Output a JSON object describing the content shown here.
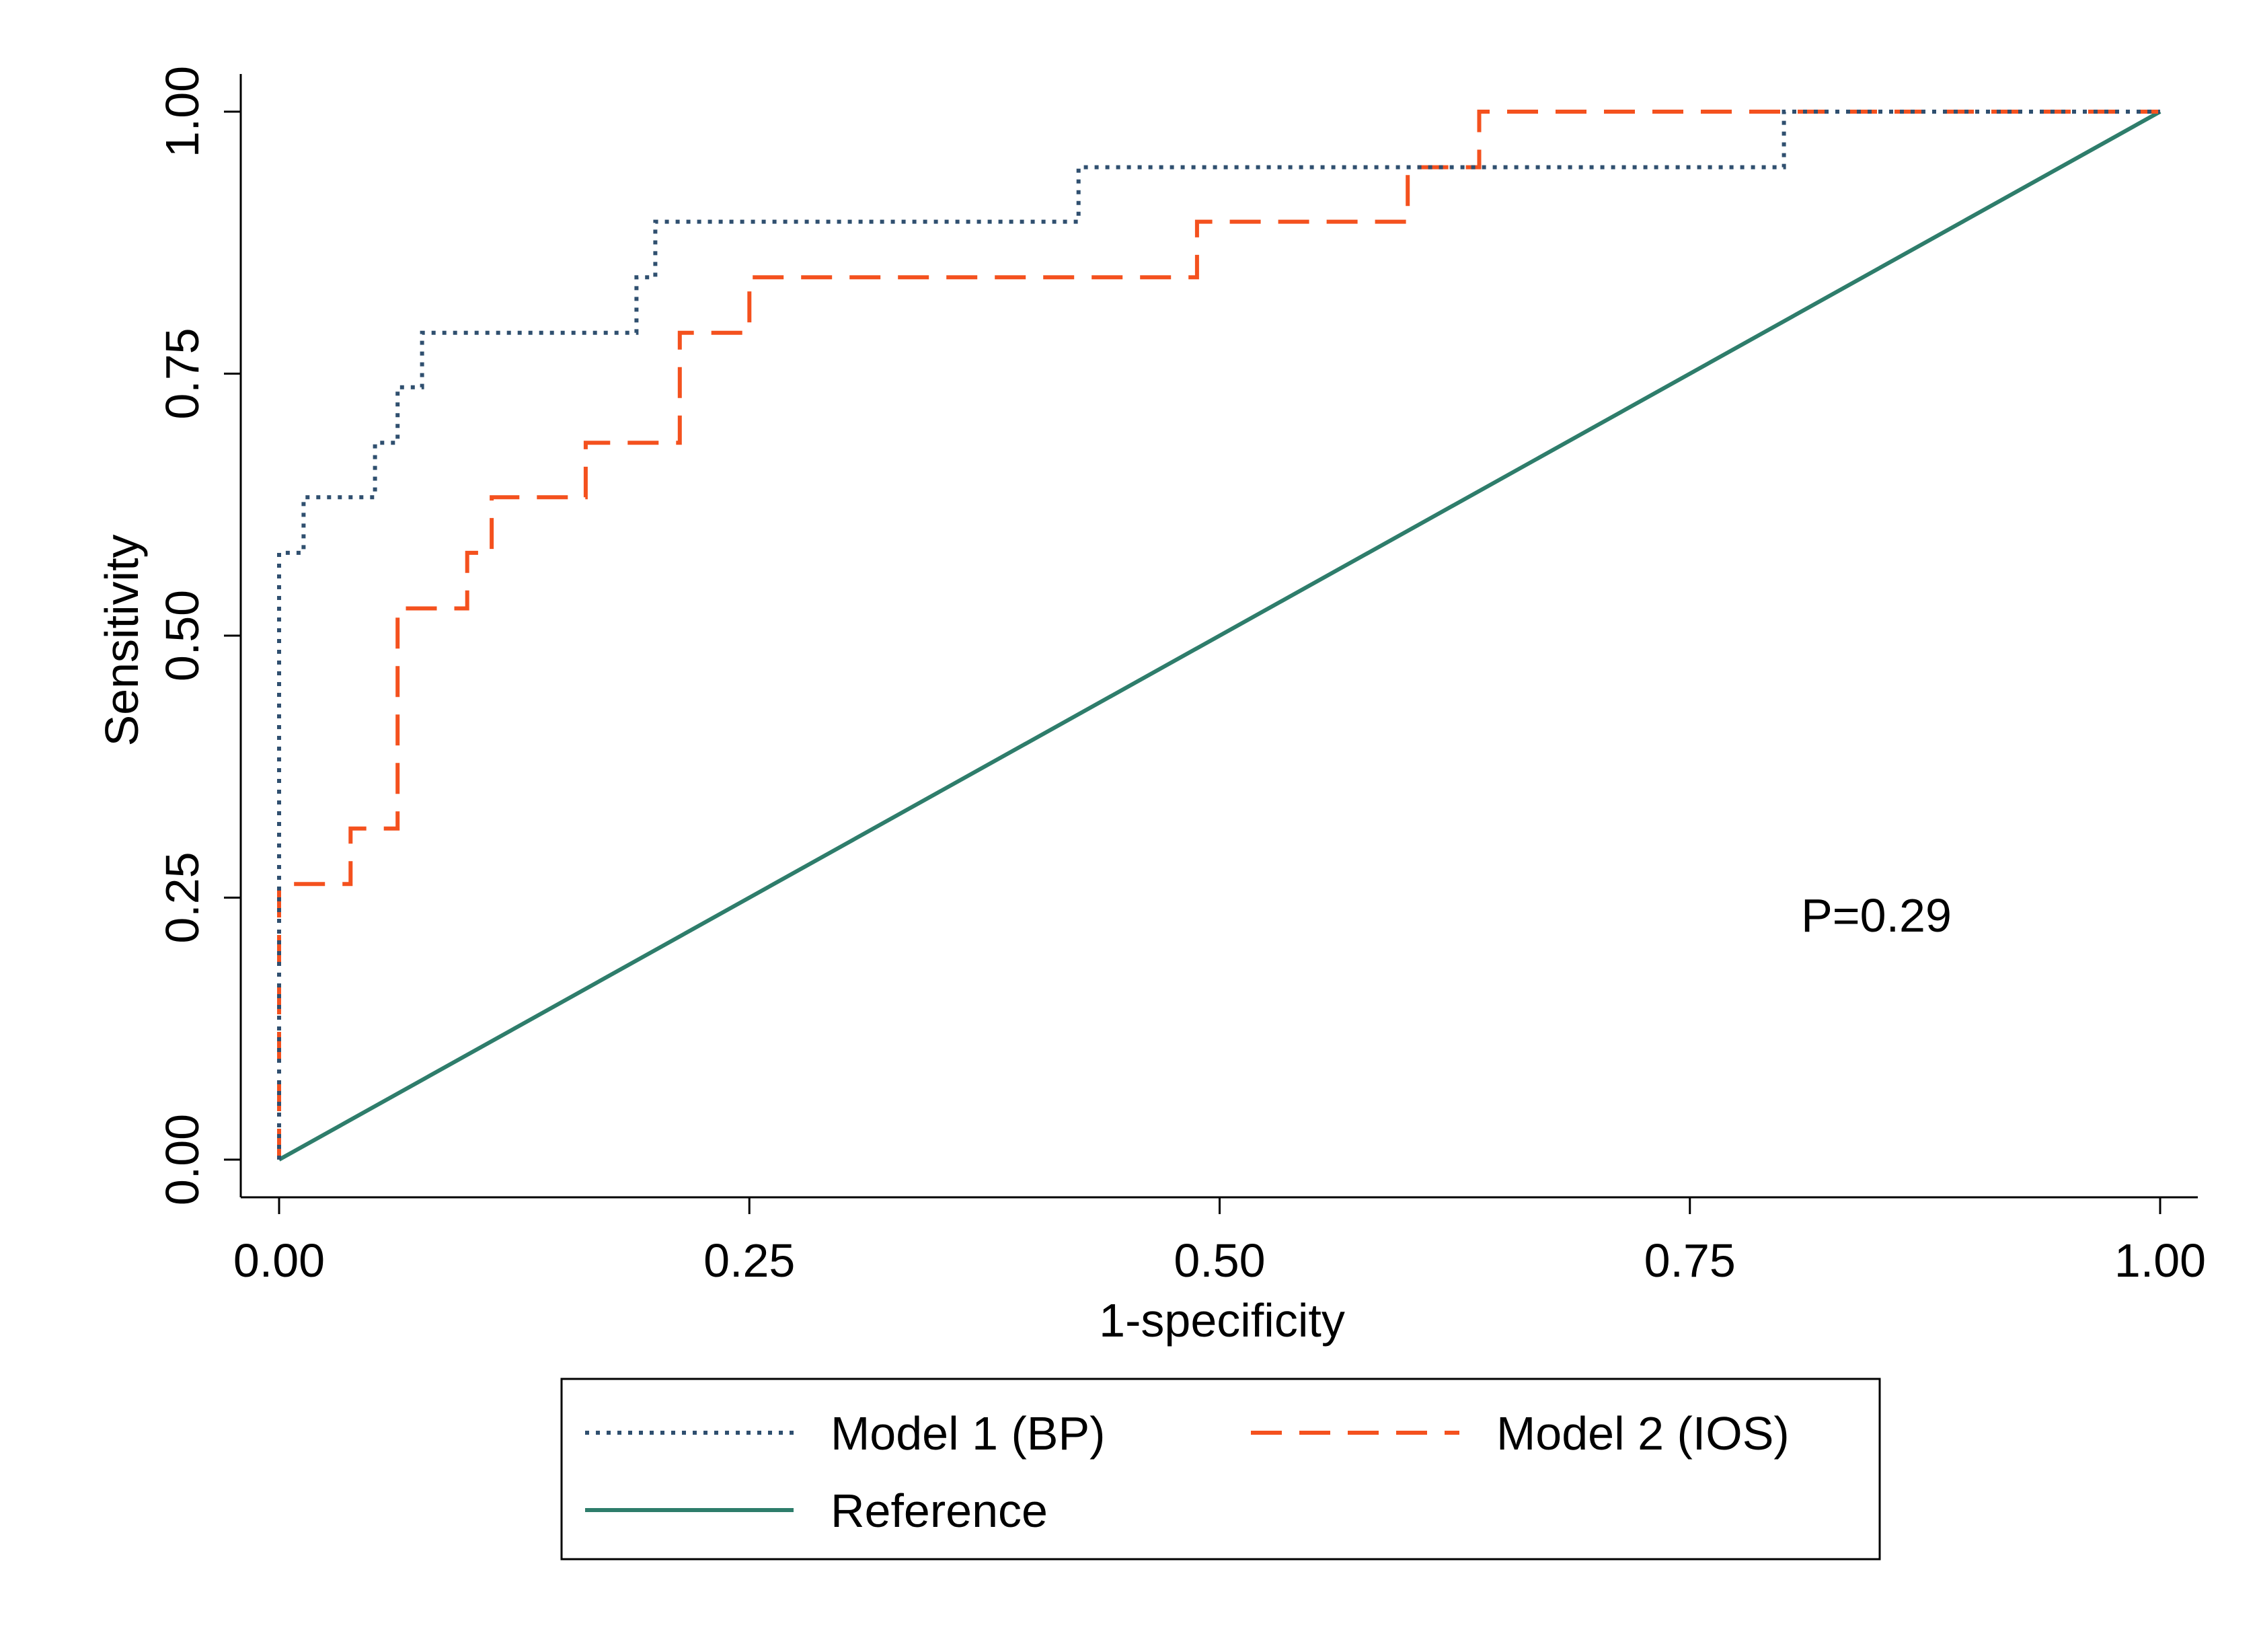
{
  "chart_data": {
    "type": "line",
    "title": "",
    "xlabel": "1-specificity",
    "ylabel": "Sensitivity",
    "xlim": [
      0,
      1
    ],
    "ylim": [
      0,
      1
    ],
    "xticks": [
      0,
      0.25,
      0.5,
      0.75,
      1
    ],
    "yticks": [
      0,
      0.25,
      0.5,
      0.75,
      1
    ],
    "xtick_labels": [
      "0.00",
      "0.25",
      "0.50",
      "0.75",
      "1.00"
    ],
    "ytick_labels": [
      "0.00",
      "0.25",
      "0.50",
      "0.75",
      "1.00"
    ],
    "grid": false,
    "legend_position": "bottom",
    "annotation": "P=0.29",
    "series": [
      {
        "name": "Model 1 (BP)",
        "style": "dotted",
        "color": "#2F4F6F",
        "points": [
          [
            0,
            0
          ],
          [
            0,
            0.579
          ],
          [
            0.013,
            0.579
          ],
          [
            0.013,
            0.632
          ],
          [
            0.051,
            0.632
          ],
          [
            0.051,
            0.684
          ],
          [
            0.063,
            0.684
          ],
          [
            0.063,
            0.737
          ],
          [
            0.076,
            0.737
          ],
          [
            0.076,
            0.789
          ],
          [
            0.19,
            0.789
          ],
          [
            0.19,
            0.842
          ],
          [
            0.2,
            0.842
          ],
          [
            0.2,
            0.895
          ],
          [
            0.425,
            0.895
          ],
          [
            0.425,
            0.947
          ],
          [
            0.8,
            0.947
          ],
          [
            0.8,
            1
          ],
          [
            1,
            1
          ]
        ]
      },
      {
        "name": "Model 2 (IOS)",
        "style": "dashed",
        "color": "#F4511E",
        "points": [
          [
            0,
            0
          ],
          [
            0,
            0.263
          ],
          [
            0.038,
            0.263
          ],
          [
            0.038,
            0.316
          ],
          [
            0.063,
            0.316
          ],
          [
            0.063,
            0.526
          ],
          [
            0.1,
            0.526
          ],
          [
            0.1,
            0.579
          ],
          [
            0.113,
            0.579
          ],
          [
            0.113,
            0.632
          ],
          [
            0.163,
            0.632
          ],
          [
            0.163,
            0.684
          ],
          [
            0.213,
            0.684
          ],
          [
            0.213,
            0.789
          ],
          [
            0.25,
            0.789
          ],
          [
            0.25,
            0.842
          ],
          [
            0.488,
            0.842
          ],
          [
            0.488,
            0.895
          ],
          [
            0.6,
            0.895
          ],
          [
            0.6,
            0.947
          ],
          [
            0.638,
            0.947
          ],
          [
            0.638,
            1
          ],
          [
            1,
            1
          ]
        ]
      },
      {
        "name": "Reference",
        "style": "solid",
        "color": "#2E7D6B",
        "points": [
          [
            0,
            0
          ],
          [
            1,
            1
          ]
        ]
      }
    ]
  }
}
